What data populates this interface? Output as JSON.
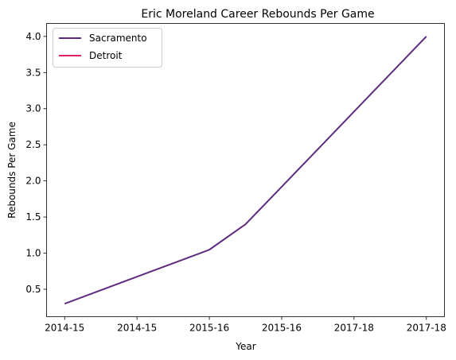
{
  "chart_data": {
    "type": "line",
    "title": "Eric Moreland Career Rebounds Per Game",
    "xlabel": "Year",
    "ylabel": "Rebounds Per Game",
    "x_tick_labels": [
      "2014-15",
      "2014-15",
      "2015-16",
      "2015-16",
      "2017-18",
      "2017-18"
    ],
    "x_positions": [
      0,
      1,
      2,
      3,
      4,
      5
    ],
    "xlim": [
      -0.25,
      5.25
    ],
    "ylim": [
      0.12,
      4.18
    ],
    "y_ticks": [
      0.5,
      1.0,
      1.5,
      2.0,
      2.5,
      3.0,
      3.5,
      4.0
    ],
    "y_tick_labels": [
      "0.5",
      "1.0",
      "1.5",
      "2.0",
      "2.5",
      "3.0",
      "3.5",
      "4.0"
    ],
    "grid": false,
    "legend_position": "top-left",
    "series": [
      {
        "name": "Sacramento",
        "color": "#5e2b7e",
        "points": [
          [
            0,
            0.3
          ],
          [
            1,
            0.673
          ],
          [
            2,
            1.047
          ],
          [
            2.5,
            1.4
          ],
          [
            3,
            1.918
          ],
          [
            4,
            2.96
          ],
          [
            5,
            4.0
          ]
        ]
      },
      {
        "name": "Detroit",
        "color": "#e0245e",
        "points": []
      }
    ]
  }
}
